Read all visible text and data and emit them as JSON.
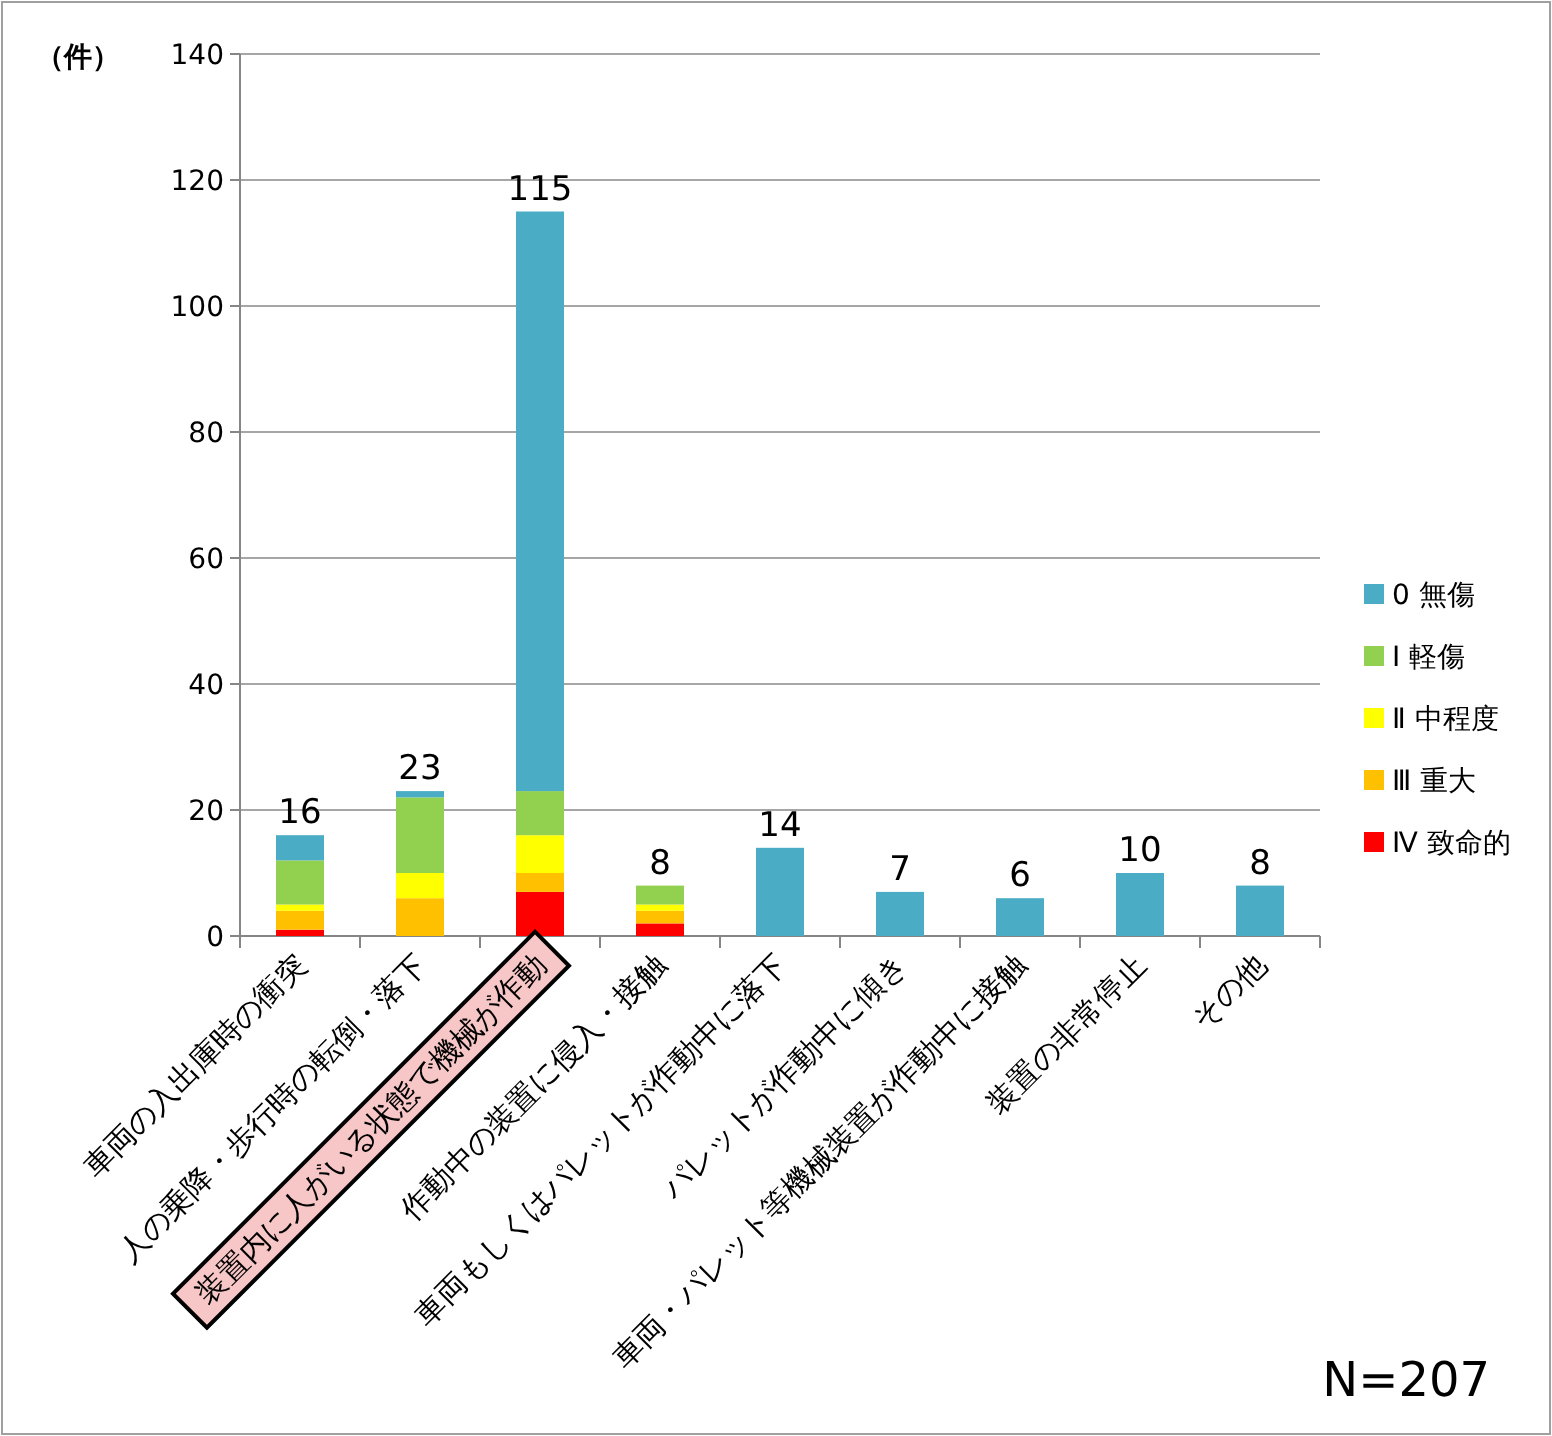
{
  "chart_data": {
    "type": "bar",
    "stacked": true,
    "ylabel": "（件）",
    "categories": [
      "車両の入出庫時の衝突",
      "人の乗降・歩行時の転倒・落下",
      "装置内に人がいる状態で機械が作動",
      "作動中の装置に侵入・接触",
      "車両もしくはパレットが作動中に落下",
      "パレットが作動中に傾き",
      "車両・パレット等機械装置が作動中に接触",
      "装置の非常停止",
      "その他"
    ],
    "series": [
      {
        "name": "Ⅳ 致命的",
        "color": "#ff0000",
        "values": [
          1,
          0,
          7,
          2,
          0,
          0,
          0,
          0,
          0
        ]
      },
      {
        "name": "Ⅲ 重大",
        "color": "#ffc000",
        "values": [
          3,
          6,
          3,
          2,
          0,
          0,
          0,
          0,
          0
        ]
      },
      {
        "name": "Ⅱ 中程度",
        "color": "#ffff00",
        "values": [
          1,
          4,
          6,
          1,
          0,
          0,
          0,
          0,
          0
        ]
      },
      {
        "name": "Ⅰ 軽傷",
        "color": "#92d050",
        "values": [
          7,
          12,
          7,
          3,
          0,
          0,
          0,
          0,
          0
        ]
      },
      {
        "name": "0 無傷",
        "color": "#4bacc6",
        "values": [
          4,
          1,
          92,
          0,
          14,
          7,
          6,
          10,
          8
        ]
      }
    ],
    "totals": [
      "16",
      "23",
      "115",
      "8",
      "14",
      "7",
      "6",
      "10",
      "8"
    ],
    "ylim": [
      0,
      140
    ],
    "yticks": [
      0,
      20,
      40,
      60,
      80,
      100,
      120,
      140
    ],
    "grid": "y",
    "legend": "right",
    "annotations": [
      "N=207"
    ]
  }
}
